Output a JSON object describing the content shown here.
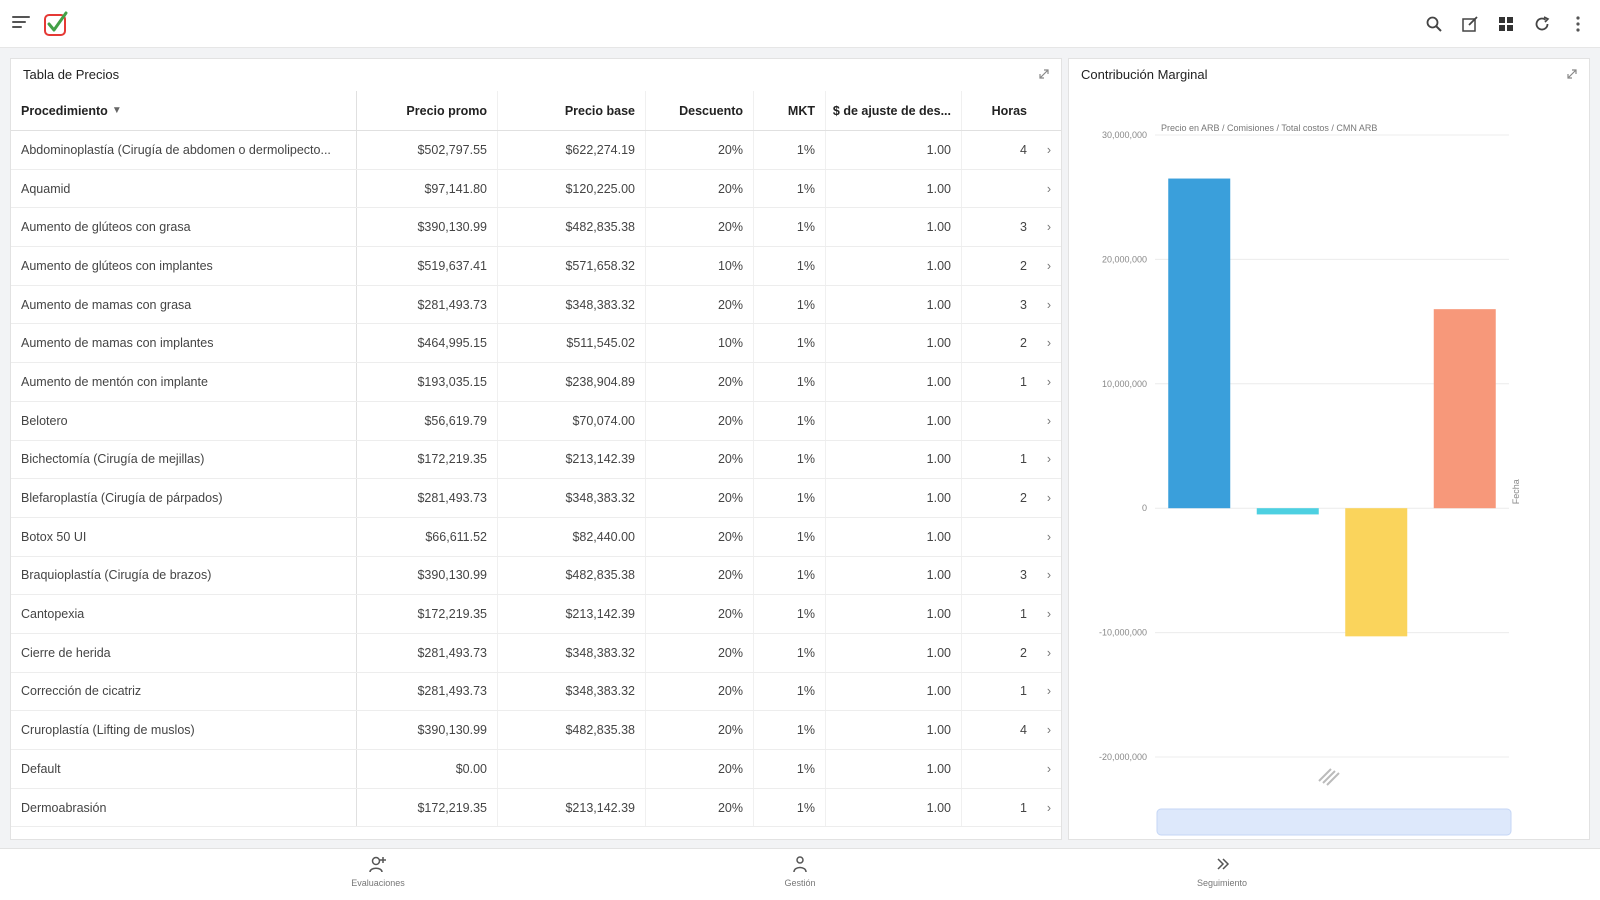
{
  "table": {
    "title": "Tabla de Precios",
    "headers": [
      "Procedimiento",
      "Precio promo",
      "Precio base",
      "Descuento",
      "MKT",
      "$ de ajuste de des...",
      "Horas"
    ],
    "rows": [
      [
        "Abdominoplastía (Cirugía de abdomen o dermolipecto...",
        "$502,797.55",
        "$622,274.19",
        "20%",
        "1%",
        "1.00",
        "4"
      ],
      [
        "Aquamid",
        "$97,141.80",
        "$120,225.00",
        "20%",
        "1%",
        "1.00",
        ""
      ],
      [
        "Aumento de glúteos con grasa",
        "$390,130.99",
        "$482,835.38",
        "20%",
        "1%",
        "1.00",
        "3"
      ],
      [
        "Aumento de glúteos con implantes",
        "$519,637.41",
        "$571,658.32",
        "10%",
        "1%",
        "1.00",
        "2"
      ],
      [
        "Aumento de mamas con grasa",
        "$281,493.73",
        "$348,383.32",
        "20%",
        "1%",
        "1.00",
        "3"
      ],
      [
        "Aumento de mamas con implantes",
        "$464,995.15",
        "$511,545.02",
        "10%",
        "1%",
        "1.00",
        "2"
      ],
      [
        "Aumento de mentón con implante",
        "$193,035.15",
        "$238,904.89",
        "20%",
        "1%",
        "1.00",
        "1"
      ],
      [
        "Belotero",
        "$56,619.79",
        "$70,074.00",
        "20%",
        "1%",
        "1.00",
        ""
      ],
      [
        "Bichectomía (Cirugía de mejillas)",
        "$172,219.35",
        "$213,142.39",
        "20%",
        "1%",
        "1.00",
        "1"
      ],
      [
        "Blefaroplastía (Cirugía de párpados)",
        "$281,493.73",
        "$348,383.32",
        "20%",
        "1%",
        "1.00",
        "2"
      ],
      [
        "Botox 50 UI",
        "$66,611.52",
        "$82,440.00",
        "20%",
        "1%",
        "1.00",
        ""
      ],
      [
        "Braquioplastía (Cirugía de brazos)",
        "$390,130.99",
        "$482,835.38",
        "20%",
        "1%",
        "1.00",
        "3"
      ],
      [
        "Cantopexia",
        "$172,219.35",
        "$213,142.39",
        "20%",
        "1%",
        "1.00",
        "1"
      ],
      [
        "Cierre de herida",
        "$281,493.73",
        "$348,383.32",
        "20%",
        "1%",
        "1.00",
        "2"
      ],
      [
        "Corrección de cicatriz",
        "$281,493.73",
        "$348,383.32",
        "20%",
        "1%",
        "1.00",
        "1"
      ],
      [
        "Cruroplastía (Lifting de muslos)",
        "$390,130.99",
        "$482,835.38",
        "20%",
        "1%",
        "1.00",
        "4"
      ],
      [
        "Default",
        "$0.00",
        "",
        "20%",
        "1%",
        "1.00",
        ""
      ],
      [
        "Dermoabrasión",
        "$172,219.35",
        "$213,142.39",
        "20%",
        "1%",
        "1.00",
        "1"
      ]
    ],
    "sort_arrow": "▼",
    "row_chevron": "›"
  },
  "chart": {
    "title": "Contribución Marginal"
  },
  "chart_data": {
    "type": "bar",
    "title": "Contribución Marginal",
    "legend": "Precio en ARB / Comisiones / Total costos / CMN ARB",
    "categories": [
      "Precio en ARB",
      "Comisiones",
      "Total costos",
      "CMN ARB"
    ],
    "values": [
      26500000,
      -500000,
      -10300000,
      16000000
    ],
    "colors": [
      "#3a9fdb",
      "#4dd0e1",
      "#fad45c",
      "#f7987a"
    ],
    "ylim": [
      -20000000,
      30000000
    ],
    "yticks": [
      30000000,
      20000000,
      10000000,
      0,
      -10000000,
      -20000000
    ],
    "ytick_labels": [
      "30,000,000",
      "20,000,000",
      "10,000,000",
      "0",
      "-10,000,000",
      "-20,000,000"
    ],
    "right_label": "Fecha",
    "grid": true
  },
  "nav": {
    "items": [
      "Evaluaciones",
      "Gestión",
      "Seguimiento"
    ]
  },
  "colors": {
    "accent": "#3a9fdb",
    "logo_green": "#43a047",
    "logo_red": "#e53935"
  }
}
